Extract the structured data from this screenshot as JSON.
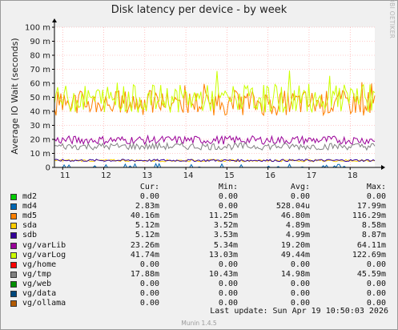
{
  "chart_data": {
    "type": "line",
    "title": "Disk latency per device - by week",
    "ylabel": "Average IO Wait (seconds)",
    "yticks": [
      "0",
      "10 m",
      "20 m",
      "30 m",
      "40 m",
      "50 m",
      "60 m",
      "70 m",
      "80 m",
      "90 m",
      "100 m"
    ],
    "ylim": [
      0,
      100
    ],
    "xticks": [
      "11",
      "12",
      "13",
      "14",
      "15",
      "16",
      "17",
      "18"
    ],
    "grid": true,
    "legend_placement": "bottom",
    "legend_headers": {
      "cur": "Cur:",
      "min": "Min:",
      "avg": "Avg:",
      "max": "Max:"
    },
    "series": [
      {
        "name": "md2",
        "color": "#00cc00",
        "cur": "0.00",
        "min": "0.00",
        "avg": "0.00",
        "max": "0.00",
        "approx_level_ms": 0,
        "approx_jitter_ms": 0
      },
      {
        "name": "md4",
        "color": "#0066b3",
        "cur": "2.83m",
        "min": "0.00",
        "avg": "528.04u",
        "max": "17.99m",
        "approx_level_ms": 0.5,
        "approx_jitter_ms": 1.5
      },
      {
        "name": "md5",
        "color": "#ff8000",
        "cur": "40.16m",
        "min": "11.25m",
        "avg": "46.80m",
        "max": "116.29m",
        "approx_level_ms": 46,
        "approx_jitter_ms": 9
      },
      {
        "name": "sda",
        "color": "#ffcc00",
        "cur": "5.12m",
        "min": "3.52m",
        "avg": "4.89m",
        "max": "8.58m",
        "approx_level_ms": 4.9,
        "approx_jitter_ms": 0.8
      },
      {
        "name": "sdb",
        "color": "#330099",
        "cur": "5.12m",
        "min": "3.53m",
        "avg": "4.99m",
        "max": "8.87m",
        "approx_level_ms": 5,
        "approx_jitter_ms": 0.8
      },
      {
        "name": "vg/varLib",
        "color": "#990099",
        "cur": "23.26m",
        "min": "5.34m",
        "avg": "19.20m",
        "max": "64.11m",
        "approx_level_ms": 19.5,
        "approx_jitter_ms": 3
      },
      {
        "name": "vg/varLog",
        "color": "#ccff00",
        "cur": "41.74m",
        "min": "13.03m",
        "avg": "49.44m",
        "max": "122.69m",
        "approx_level_ms": 49,
        "approx_jitter_ms": 10
      },
      {
        "name": "vg/home",
        "color": "#ff0000",
        "cur": "0.00",
        "min": "0.00",
        "avg": "0.00",
        "max": "0.00",
        "approx_level_ms": 0,
        "approx_jitter_ms": 0
      },
      {
        "name": "vg/tmp",
        "color": "#808080",
        "cur": "17.88m",
        "min": "10.43m",
        "avg": "14.98m",
        "max": "45.59m",
        "approx_level_ms": 15,
        "approx_jitter_ms": 2.5
      },
      {
        "name": "vg/web",
        "color": "#008f00",
        "cur": "0.00",
        "min": "0.00",
        "avg": "0.00",
        "max": "0.00",
        "approx_level_ms": 0,
        "approx_jitter_ms": 0
      },
      {
        "name": "vg/data",
        "color": "#00487d",
        "cur": "0.00",
        "min": "0.00",
        "avg": "0.00",
        "max": "0.00",
        "approx_level_ms": 0,
        "approx_jitter_ms": 0
      },
      {
        "name": "vg/ollama",
        "color": "#b35a00",
        "cur": "0.00",
        "min": "0.00",
        "avg": "0.00",
        "max": "0.00",
        "approx_level_ms": 0,
        "approx_jitter_ms": 0
      }
    ]
  },
  "credit": "RRDTOOL / TOBI OETIKER",
  "last_update": "Last update:  Sun Apr 19 10:50:03 2026",
  "version": "Munin 1.4.5"
}
